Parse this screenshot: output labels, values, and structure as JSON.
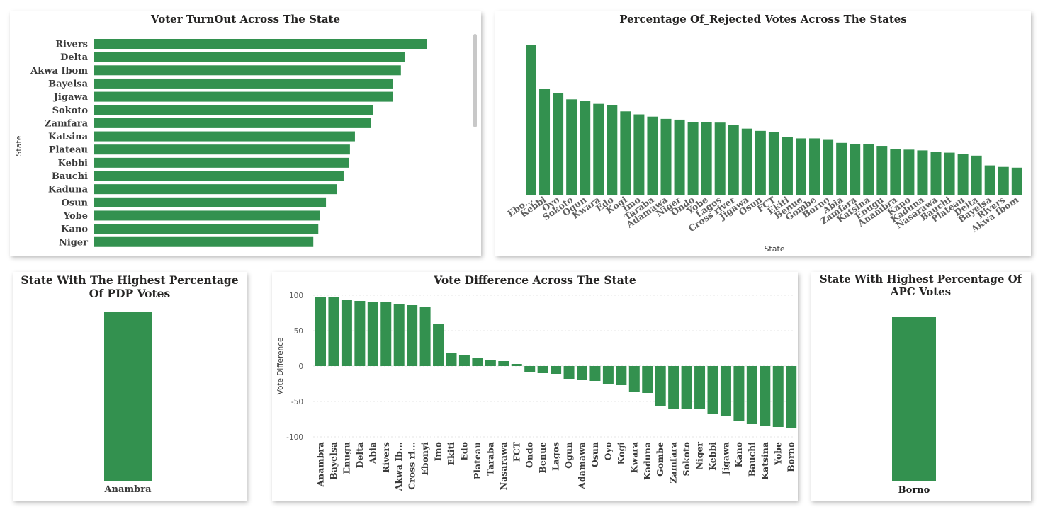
{
  "colors": {
    "bar": "#33914f",
    "text": "#3b3b3b",
    "axis_text": "#5f5f5f",
    "grid": "#e6e6e6"
  },
  "panels": {
    "turnout": {
      "title": "Voter TurnOut Across The State",
      "ylabel": "State"
    },
    "rejected": {
      "title": "Percentage Of_Rejected Votes Across The States",
      "xlabel": "State"
    },
    "pdp": {
      "title_line1": "State With The Highest Percentage",
      "title_line2": "Of PDP Votes"
    },
    "diff": {
      "title": "Vote Difference Across The State",
      "ylabel": "Vote Difference"
    },
    "apc": {
      "title_line1": "State With Highest Percentage Of",
      "title_line2": "APC Votes"
    }
  },
  "chart_data": [
    {
      "type": "bar",
      "orientation": "horizontal",
      "title": "Voter TurnOut Across The State",
      "ylabel": "State",
      "categories": [
        "Rivers",
        "Delta",
        "Akwa Ibom",
        "Bayelsa",
        "Jigawa",
        "Sokoto",
        "Zamfara",
        "Katsina",
        "Plateau",
        "Kebbi",
        "Bauchi",
        "Kaduna",
        "Osun",
        "Yobe",
        "Kano",
        "Niger"
      ],
      "values": [
        100,
        93.4,
        92.3,
        89.8,
        89.8,
        84.0,
        83.2,
        78.5,
        77.0,
        76.8,
        75.1,
        73.1,
        69.8,
        68.0,
        67.5,
        66.0
      ],
      "scrollable": true
    },
    {
      "type": "bar",
      "title": "Percentage Of_Rejected Votes Across The States",
      "xlabel": "State",
      "categories": [
        "Ebo...",
        "Kebbi",
        "Oyo",
        "Sokoto",
        "Ogun",
        "Kwara",
        "Edo",
        "Kogi",
        "Imo",
        "Taraba",
        "Adamawa",
        "Niger",
        "Ondo",
        "Yobe",
        "Lagos",
        "Cross river",
        "Jigawa",
        "Osun",
        "FCT",
        "Ekiti",
        "Benue",
        "Gombe",
        "Borno",
        "Abia",
        "Zamfara",
        "Katsina",
        "Enugu",
        "Anambra",
        "Kano",
        "Kaduna",
        "Nasarawa",
        "Bauchi",
        "Plateau",
        "Delta",
        "Bayelsa",
        "Rivers",
        "Akwa Ibom"
      ],
      "values": [
        100,
        71,
        68,
        64,
        63,
        61,
        60,
        56,
        54,
        52.5,
        51,
        50.5,
        49,
        49,
        48.5,
        47,
        44.5,
        43,
        42,
        39,
        38,
        38,
        37,
        35,
        34,
        34,
        33,
        31,
        30.5,
        30,
        29,
        28.5,
        27.5,
        26.5,
        20,
        19,
        18.5
      ]
    },
    {
      "type": "bar",
      "title": "State With The Highest Percentage Of PDP Votes",
      "categories": [
        "Anambra"
      ],
      "values": [
        1
      ]
    },
    {
      "type": "bar",
      "title": "Vote Difference Across The State",
      "ylabel": "Vote Difference",
      "ylim": [
        -100,
        100
      ],
      "yticks": [
        100,
        50,
        0,
        -50,
        -100
      ],
      "grid": true,
      "categories": [
        "Anambra",
        "Bayelsa",
        "Enugu",
        "Delta",
        "Abia",
        "Rivers",
        "Akwa Ib...",
        "Cross ri...",
        "Ebonyi",
        "Imo",
        "Ekiti",
        "Edo",
        "Plateau",
        "Taraba",
        "Nasarawa",
        "FCT",
        "Ondo",
        "Benue",
        "Lagos",
        "Ogun",
        "Adamawa",
        "Osun",
        "Oyo",
        "Kogi",
        "Kwara",
        "Kaduna",
        "Gombe",
        "Zamfara",
        "Sokoto",
        "Niger",
        "Kebbi",
        "Jigawa",
        "Kano",
        "Bauchi",
        "Katsina",
        "Yobe",
        "Borno"
      ],
      "values": [
        98,
        97,
        94,
        92,
        91,
        90,
        87,
        86,
        83,
        60,
        18,
        16,
        12,
        9,
        7,
        3,
        -8,
        -10,
        -11,
        -18,
        -19,
        -21,
        -25,
        -27,
        -37,
        -38,
        -56,
        -60,
        -61,
        -61,
        -68,
        -70,
        -78,
        -82,
        -85,
        -86,
        -88
      ]
    },
    {
      "type": "bar",
      "title": "State With Highest Percentage Of APC Votes",
      "categories": [
        "Borno"
      ],
      "values": [
        1
      ]
    }
  ]
}
